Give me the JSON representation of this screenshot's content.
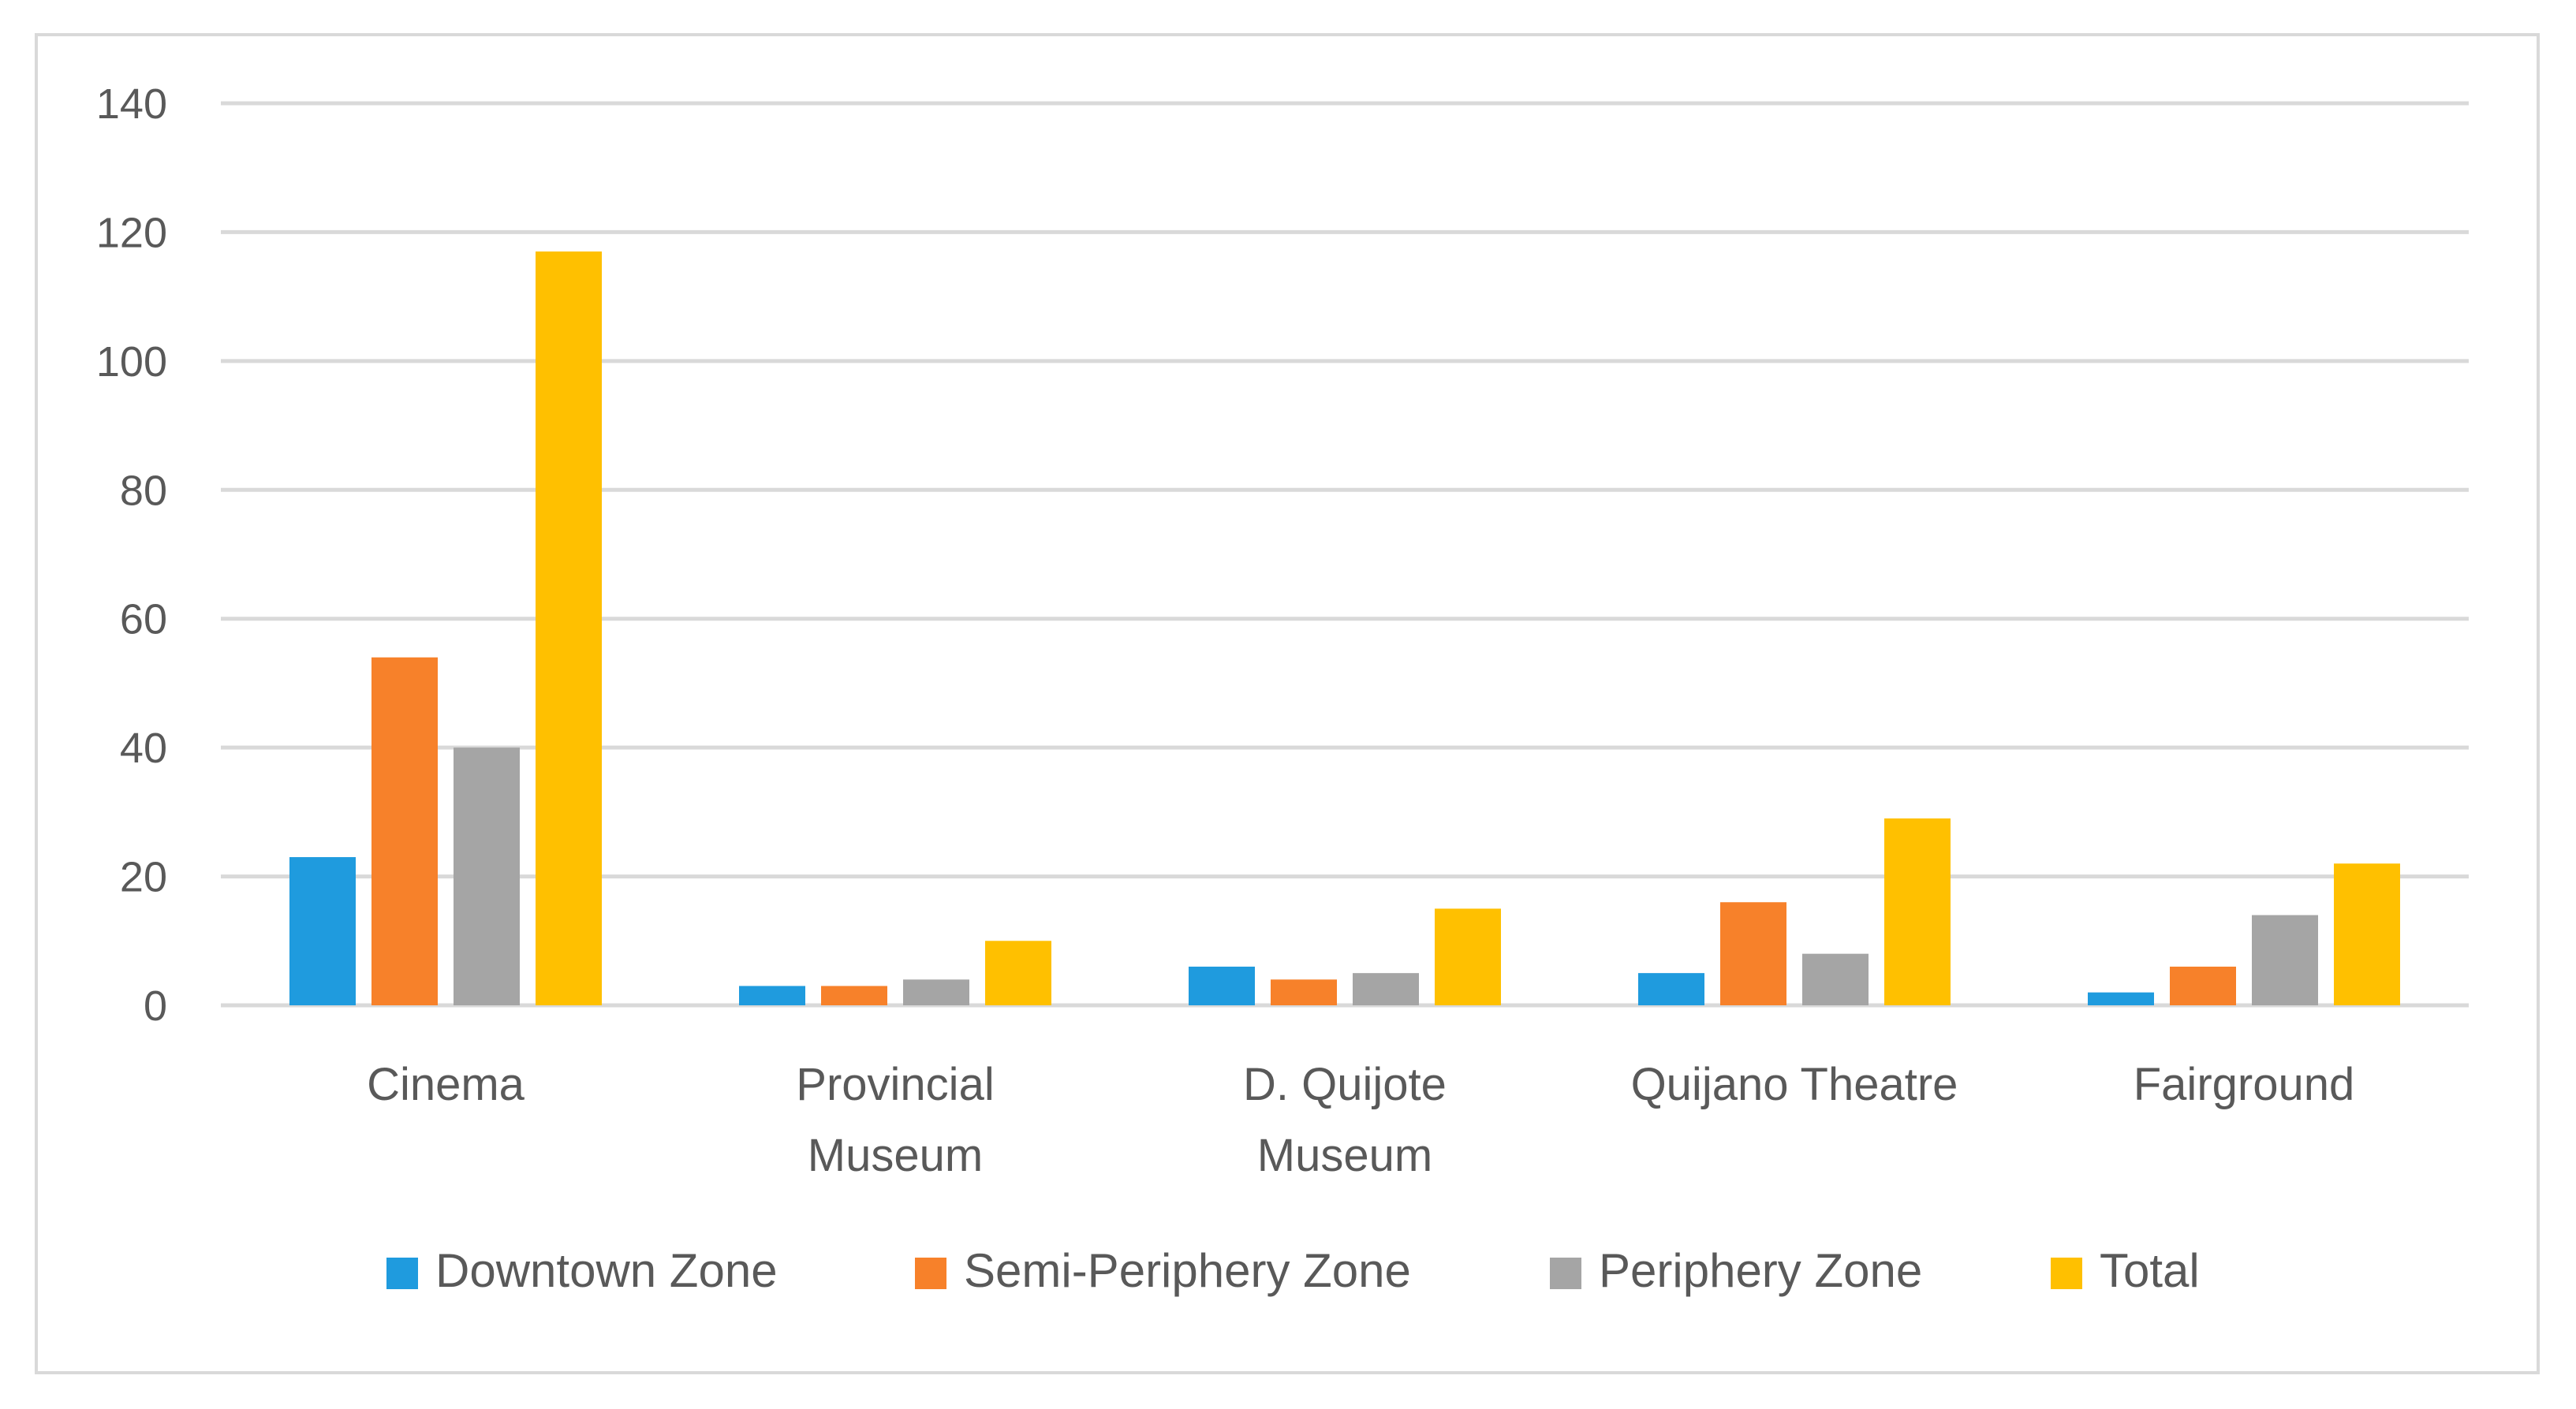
{
  "chart_data": {
    "type": "bar",
    "categories": [
      [
        "Cinema"
      ],
      [
        "Provincial",
        "Museum"
      ],
      [
        "D. Quijote",
        "Museum"
      ],
      [
        "Quijano Theatre"
      ],
      [
        "Fairground"
      ]
    ],
    "series": [
      {
        "name": "Downtown Zone",
        "color": "#1f9bde",
        "values": [
          23,
          3,
          6,
          5,
          2
        ]
      },
      {
        "name": "Semi-Periphery Zone",
        "color": "#f7812a",
        "values": [
          54,
          3,
          4,
          16,
          6
        ]
      },
      {
        "name": "Periphery Zone",
        "color": "#a5a5a5",
        "values": [
          40,
          4,
          5,
          8,
          14
        ]
      },
      {
        "name": "Total",
        "color": "#ffc000",
        "values": [
          117,
          10,
          15,
          29,
          22
        ]
      }
    ],
    "ylim": [
      0,
      140
    ],
    "yticks": [
      0,
      20,
      40,
      60,
      80,
      100,
      120,
      140
    ],
    "grid": true,
    "legend_position": "bottom",
    "title": "",
    "xlabel": "",
    "ylabel": ""
  }
}
